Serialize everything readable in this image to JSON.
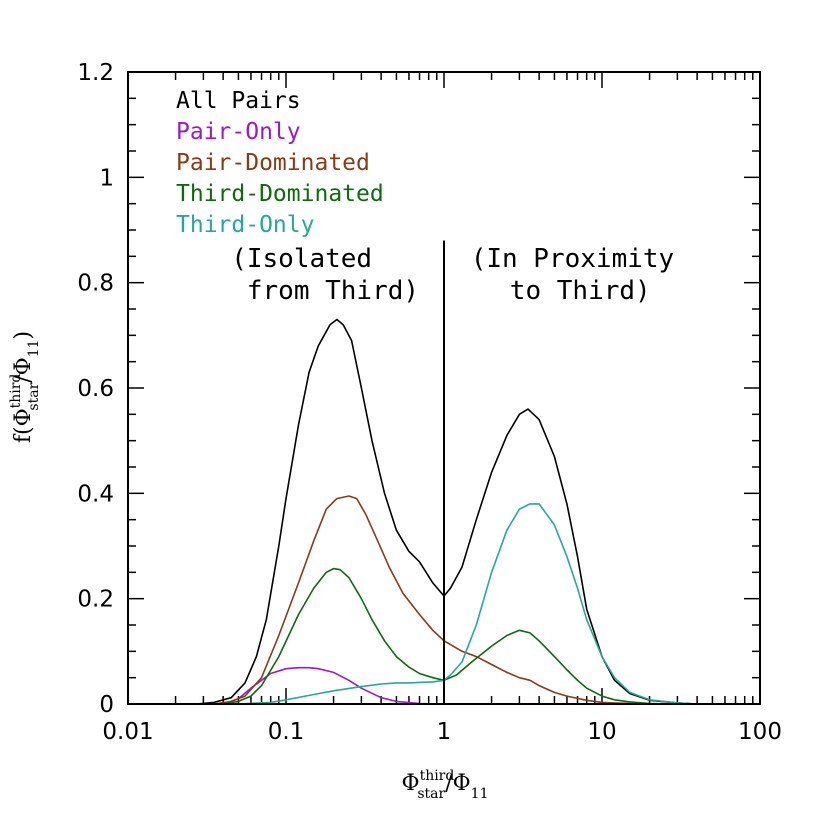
{
  "chart_data": {
    "type": "line",
    "xscale": "log",
    "xlim": [
      0.01,
      100
    ],
    "ylim": [
      0,
      1.2
    ],
    "x_ticks": [
      "0.01",
      "0.1",
      "1",
      "10",
      "100"
    ],
    "y_ticks": [
      "0",
      "0.2",
      "0.4",
      "0.6",
      "0.8",
      "1",
      "1.2"
    ],
    "xlabel": {
      "base": "Φ",
      "sup": "third",
      "sub": "star",
      "rest": "/Φ",
      "rest_sub": "11"
    },
    "ylabel": {
      "pre": "f(Φ",
      "sup": "third",
      "sub": "star",
      "rest": "/Φ",
      "rest_sub": "11",
      "post": ")"
    },
    "legend_position": "top-left",
    "annotations": [
      {
        "lines": [
          "(Isolated",
          " from Third)"
        ],
        "x": 0.045,
        "y": 0.83
      },
      {
        "lines": [
          "(In Proximity",
          " to Third)"
        ],
        "x": 6.5,
        "y": 0.83
      }
    ],
    "divider": {
      "x": 1,
      "y_top": 0.88
    },
    "series": [
      {
        "name": "All Pairs",
        "color": "#000000",
        "x": [
          0.027,
          0.035,
          0.045,
          0.055,
          0.065,
          0.075,
          0.09,
          0.1,
          0.12,
          0.14,
          0.16,
          0.19,
          0.21,
          0.23,
          0.26,
          0.3,
          0.35,
          0.42,
          0.5,
          0.6,
          0.7,
          0.85,
          1.0,
          1.1,
          1.3,
          1.6,
          2.0,
          2.5,
          3.0,
          3.4,
          4.0,
          5.0,
          6.0,
          7.0,
          8.0,
          10,
          12,
          15,
          20,
          30,
          40
        ],
        "y": [
          0.0,
          0.003,
          0.012,
          0.04,
          0.09,
          0.16,
          0.3,
          0.39,
          0.53,
          0.63,
          0.68,
          0.72,
          0.73,
          0.72,
          0.69,
          0.6,
          0.5,
          0.4,
          0.33,
          0.29,
          0.27,
          0.23,
          0.205,
          0.22,
          0.26,
          0.35,
          0.44,
          0.51,
          0.55,
          0.56,
          0.54,
          0.47,
          0.38,
          0.28,
          0.18,
          0.09,
          0.045,
          0.02,
          0.007,
          0.002,
          0.0
        ]
      },
      {
        "name": "Pair-Only",
        "color": "#9a1bc5",
        "x": [
          0.04,
          0.05,
          0.06,
          0.07,
          0.08,
          0.1,
          0.12,
          0.14,
          0.16,
          0.2,
          0.25,
          0.3,
          0.4,
          0.5,
          0.7,
          1.0
        ],
        "y": [
          0.0,
          0.01,
          0.03,
          0.045,
          0.058,
          0.067,
          0.069,
          0.069,
          0.067,
          0.06,
          0.045,
          0.03,
          0.012,
          0.005,
          0.001,
          0.0
        ]
      },
      {
        "name": "Pair-Dominated",
        "color": "#8b3a16",
        "x": [
          0.035,
          0.045,
          0.055,
          0.07,
          0.09,
          0.12,
          0.15,
          0.18,
          0.21,
          0.25,
          0.28,
          0.32,
          0.38,
          0.45,
          0.55,
          0.7,
          0.85,
          1.0,
          1.3,
          1.6,
          2.0,
          2.5,
          3.0,
          3.5,
          4.0,
          5.0,
          6.0,
          8.0,
          10,
          15,
          20
        ],
        "y": [
          0.0,
          0.005,
          0.015,
          0.05,
          0.13,
          0.23,
          0.31,
          0.37,
          0.39,
          0.395,
          0.39,
          0.36,
          0.31,
          0.26,
          0.21,
          0.17,
          0.14,
          0.12,
          0.1,
          0.09,
          0.075,
          0.06,
          0.05,
          0.045,
          0.035,
          0.022,
          0.015,
          0.007,
          0.003,
          0.001,
          0.0
        ]
      },
      {
        "name": "Third-Dominated",
        "color": "#0d6b0d",
        "x": [
          0.04,
          0.05,
          0.06,
          0.07,
          0.09,
          0.12,
          0.15,
          0.18,
          0.2,
          0.22,
          0.25,
          0.3,
          0.35,
          0.42,
          0.5,
          0.6,
          0.7,
          0.85,
          1.0,
          1.2,
          1.5,
          2.0,
          2.5,
          3.0,
          3.5,
          4.0,
          5.0,
          6.0,
          7.0,
          8.0,
          10,
          12,
          15,
          20,
          30
        ],
        "y": [
          0.0,
          0.005,
          0.015,
          0.035,
          0.09,
          0.17,
          0.22,
          0.25,
          0.257,
          0.255,
          0.24,
          0.2,
          0.16,
          0.12,
          0.09,
          0.07,
          0.058,
          0.05,
          0.045,
          0.055,
          0.08,
          0.11,
          0.13,
          0.14,
          0.135,
          0.12,
          0.09,
          0.065,
          0.045,
          0.03,
          0.015,
          0.008,
          0.004,
          0.001,
          0.0
        ]
      },
      {
        "name": "Third-Only",
        "color": "#25a89a",
        "x": [
          0.05,
          0.08,
          0.1,
          0.15,
          0.2,
          0.3,
          0.4,
          0.5,
          0.6,
          0.7,
          0.85,
          1.0,
          1.1,
          1.3,
          1.6,
          2.0,
          2.5,
          3.0,
          3.5,
          4.0,
          5.0,
          6.0,
          7.0,
          8.0,
          10,
          12,
          15,
          20,
          30,
          40
        ],
        "y": [
          0.0,
          0.003,
          0.008,
          0.018,
          0.025,
          0.033,
          0.038,
          0.04,
          0.04,
          0.041,
          0.042,
          0.045,
          0.055,
          0.08,
          0.15,
          0.25,
          0.33,
          0.37,
          0.38,
          0.38,
          0.34,
          0.28,
          0.22,
          0.16,
          0.09,
          0.05,
          0.022,
          0.008,
          0.002,
          0.0
        ]
      }
    ]
  }
}
